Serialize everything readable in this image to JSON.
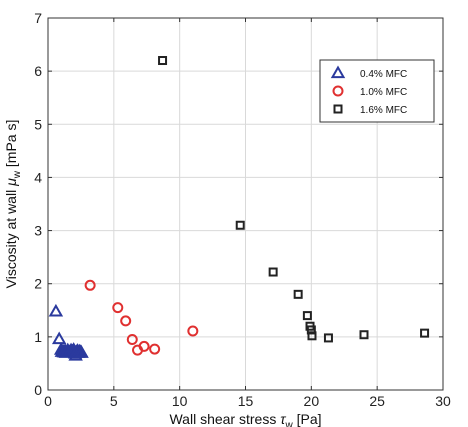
{
  "chart_data": {
    "type": "scatter",
    "xlabel": "Wall shear stress τ_w [Pa]",
    "xlabel_text": "Wall shear stress ",
    "xlabel_symbol": "τ",
    "xlabel_sub": "w",
    "xlabel_unit": " [Pa]",
    "ylabel": "Viscosity at wall μ_w [mPa s]",
    "ylabel_text": "Viscosity at wall ",
    "ylabel_symbol": "μ",
    "ylabel_sub": "w",
    "ylabel_unit": " [mPa s]",
    "xlim": [
      0,
      30
    ],
    "ylim": [
      0,
      7
    ],
    "xticks": [
      "0",
      "5",
      "10",
      "15",
      "20",
      "25",
      "30"
    ],
    "yticks": [
      "0",
      "1",
      "2",
      "3",
      "4",
      "5",
      "6",
      "7"
    ],
    "grid": true,
    "legend_position": "top-right",
    "series": [
      {
        "name": "0.4% MFC",
        "marker": "triangle",
        "color": "#2b3a9e",
        "points": [
          [
            0.6,
            1.48
          ],
          [
            0.85,
            0.96
          ],
          [
            1.0,
            0.76
          ],
          [
            1.05,
            0.72
          ],
          [
            1.15,
            0.73
          ],
          [
            1.2,
            0.71
          ],
          [
            1.3,
            0.74
          ],
          [
            1.35,
            0.7
          ],
          [
            1.45,
            0.72
          ],
          [
            1.5,
            0.75
          ],
          [
            1.6,
            0.72
          ],
          [
            1.7,
            0.71
          ],
          [
            1.75,
            0.75
          ],
          [
            1.85,
            0.73
          ],
          [
            1.95,
            0.76
          ],
          [
            2.0,
            0.72
          ],
          [
            2.05,
            0.69
          ],
          [
            2.1,
            0.65
          ],
          [
            2.15,
            0.72
          ],
          [
            2.25,
            0.74
          ],
          [
            2.3,
            0.7
          ],
          [
            2.4,
            0.73
          ],
          [
            2.5,
            0.72
          ],
          [
            2.55,
            0.7
          ]
        ]
      },
      {
        "name": "1.0% MFC",
        "marker": "circle",
        "color": "#e03030",
        "points": [
          [
            3.2,
            1.97
          ],
          [
            5.3,
            1.55
          ],
          [
            5.9,
            1.3
          ],
          [
            6.4,
            0.95
          ],
          [
            6.8,
            0.75
          ],
          [
            7.3,
            0.82
          ],
          [
            8.1,
            0.77
          ],
          [
            11.0,
            1.11
          ]
        ]
      },
      {
        "name": "1.6% MFC",
        "marker": "square",
        "color": "#222222",
        "points": [
          [
            8.7,
            6.2
          ],
          [
            14.6,
            3.1
          ],
          [
            17.1,
            2.22
          ],
          [
            19.0,
            1.8
          ],
          [
            19.7,
            1.4
          ],
          [
            19.9,
            1.2
          ],
          [
            20.0,
            1.13
          ],
          [
            20.05,
            1.02
          ],
          [
            21.3,
            0.98
          ],
          [
            24.0,
            1.04
          ],
          [
            28.6,
            1.07
          ]
        ]
      }
    ]
  }
}
